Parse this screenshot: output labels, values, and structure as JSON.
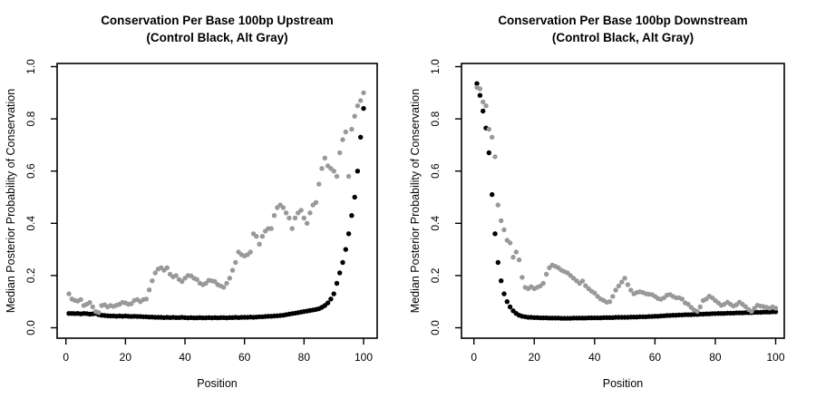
{
  "page": {
    "background": "#ffffff",
    "point_color_control": "#000000",
    "point_color_alt": "#999999"
  },
  "chart_data": [
    {
      "type": "scatter",
      "title": "Conservation Per Base 100bp Upstream",
      "subtitle": "(Control Black, Alt Gray)",
      "xlabel": "Position",
      "ylabel": "Median Posterior Probability of Conservation",
      "xlim": [
        0,
        100
      ],
      "ylim": [
        0.0,
        1.0
      ],
      "x_ticks": [
        0,
        20,
        40,
        60,
        80,
        100
      ],
      "y_ticks": [
        "0.0",
        "0.2",
        "0.4",
        "0.6",
        "0.8",
        "1.0"
      ],
      "grid": false,
      "legend": "none (described in subtitle)",
      "x_start": 1,
      "x_step": 1,
      "series": [
        {
          "name": "Control",
          "color": "#000000",
          "values": [
            0.055,
            0.055,
            0.054,
            0.055,
            0.053,
            0.055,
            0.054,
            0.052,
            0.053,
            0.055,
            0.05,
            0.048,
            0.047,
            0.046,
            0.045,
            0.045,
            0.044,
            0.045,
            0.044,
            0.045,
            0.044,
            0.043,
            0.044,
            0.043,
            0.043,
            0.042,
            0.042,
            0.041,
            0.041,
            0.04,
            0.04,
            0.04,
            0.039,
            0.04,
            0.039,
            0.04,
            0.039,
            0.039,
            0.04,
            0.039,
            0.038,
            0.039,
            0.038,
            0.038,
            0.039,
            0.038,
            0.038,
            0.039,
            0.038,
            0.039,
            0.038,
            0.039,
            0.039,
            0.038,
            0.039,
            0.039,
            0.04,
            0.039,
            0.04,
            0.04,
            0.04,
            0.041,
            0.04,
            0.041,
            0.042,
            0.042,
            0.043,
            0.044,
            0.044,
            0.045,
            0.046,
            0.047,
            0.048,
            0.05,
            0.052,
            0.054,
            0.056,
            0.058,
            0.06,
            0.062,
            0.064,
            0.066,
            0.068,
            0.07,
            0.073,
            0.078,
            0.085,
            0.095,
            0.11,
            0.13,
            0.17,
            0.21,
            0.25,
            0.3,
            0.36,
            0.43,
            0.5,
            0.6,
            0.73,
            0.84
          ]
        },
        {
          "name": "Alt",
          "color": "#999999",
          "values": [
            0.13,
            0.11,
            0.105,
            0.102,
            0.108,
            0.085,
            0.09,
            0.097,
            0.08,
            0.062,
            0.058,
            0.085,
            0.088,
            0.08,
            0.085,
            0.082,
            0.086,
            0.09,
            0.097,
            0.095,
            0.09,
            0.092,
            0.105,
            0.108,
            0.1,
            0.108,
            0.11,
            0.145,
            0.18,
            0.21,
            0.225,
            0.23,
            0.22,
            0.23,
            0.205,
            0.195,
            0.2,
            0.185,
            0.177,
            0.19,
            0.2,
            0.199,
            0.19,
            0.185,
            0.171,
            0.165,
            0.17,
            0.182,
            0.18,
            0.177,
            0.165,
            0.16,
            0.155,
            0.17,
            0.19,
            0.22,
            0.25,
            0.29,
            0.28,
            0.275,
            0.28,
            0.29,
            0.36,
            0.35,
            0.32,
            0.35,
            0.37,
            0.38,
            0.38,
            0.43,
            0.46,
            0.47,
            0.46,
            0.44,
            0.42,
            0.38,
            0.42,
            0.44,
            0.45,
            0.42,
            0.4,
            0.44,
            0.47,
            0.48,
            0.55,
            0.61,
            0.65,
            0.62,
            0.61,
            0.6,
            0.58,
            0.67,
            0.72,
            0.75,
            0.58,
            0.76,
            0.81,
            0.85,
            0.87,
            0.9
          ]
        }
      ]
    },
    {
      "type": "scatter",
      "title": "Conservation Per Base 100bp Downstream",
      "subtitle": "(Control Black, Alt Gray)",
      "xlabel": "Position",
      "ylabel": "Median Posterior Probability of Conservation",
      "xlim": [
        0,
        100
      ],
      "ylim": [
        0.0,
        1.0
      ],
      "x_ticks": [
        0,
        20,
        40,
        60,
        80,
        100
      ],
      "y_ticks": [
        "0.0",
        "0.2",
        "0.4",
        "0.6",
        "0.8",
        "1.0"
      ],
      "grid": false,
      "legend": "none (described in subtitle)",
      "x_start": 1,
      "x_step": 1,
      "series": [
        {
          "name": "Control",
          "color": "#000000",
          "values": [
            0.935,
            0.89,
            0.83,
            0.765,
            0.67,
            0.51,
            0.36,
            0.25,
            0.18,
            0.13,
            0.1,
            0.08,
            0.065,
            0.055,
            0.048,
            0.044,
            0.042,
            0.04,
            0.04,
            0.039,
            0.039,
            0.038,
            0.038,
            0.038,
            0.037,
            0.037,
            0.037,
            0.037,
            0.036,
            0.036,
            0.036,
            0.036,
            0.037,
            0.037,
            0.037,
            0.037,
            0.037,
            0.038,
            0.038,
            0.038,
            0.038,
            0.038,
            0.039,
            0.039,
            0.039,
            0.039,
            0.04,
            0.04,
            0.04,
            0.04,
            0.04,
            0.041,
            0.041,
            0.041,
            0.042,
            0.042,
            0.042,
            0.043,
            0.043,
            0.044,
            0.044,
            0.045,
            0.046,
            0.047,
            0.047,
            0.048,
            0.048,
            0.049,
            0.049,
            0.05,
            0.05,
            0.05,
            0.051,
            0.051,
            0.052,
            0.052,
            0.053,
            0.053,
            0.054,
            0.054,
            0.055,
            0.055,
            0.055,
            0.056,
            0.056,
            0.056,
            0.057,
            0.057,
            0.057,
            0.058,
            0.058,
            0.058,
            0.059,
            0.059,
            0.059,
            0.06,
            0.06,
            0.06,
            0.061,
            0.061
          ]
        },
        {
          "name": "Alt",
          "color": "#999999",
          "values": [
            0.92,
            0.915,
            0.865,
            0.85,
            0.76,
            0.73,
            0.655,
            0.47,
            0.41,
            0.375,
            0.335,
            0.325,
            0.27,
            0.29,
            0.26,
            0.193,
            0.155,
            0.15,
            0.157,
            0.15,
            0.155,
            0.16,
            0.17,
            0.205,
            0.23,
            0.24,
            0.235,
            0.23,
            0.22,
            0.215,
            0.21,
            0.2,
            0.19,
            0.18,
            0.17,
            0.179,
            0.161,
            0.15,
            0.14,
            0.133,
            0.12,
            0.11,
            0.105,
            0.098,
            0.1,
            0.12,
            0.144,
            0.16,
            0.175,
            0.19,
            0.165,
            0.144,
            0.13,
            0.135,
            0.138,
            0.135,
            0.13,
            0.128,
            0.127,
            0.12,
            0.112,
            0.109,
            0.115,
            0.125,
            0.127,
            0.12,
            0.115,
            0.115,
            0.11,
            0.095,
            0.09,
            0.078,
            0.068,
            0.063,
            0.08,
            0.104,
            0.11,
            0.121,
            0.115,
            0.104,
            0.095,
            0.086,
            0.09,
            0.098,
            0.09,
            0.083,
            0.088,
            0.098,
            0.09,
            0.081,
            0.07,
            0.063,
            0.075,
            0.086,
            0.083,
            0.081,
            0.078,
            0.075,
            0.08,
            0.075
          ]
        }
      ]
    }
  ]
}
